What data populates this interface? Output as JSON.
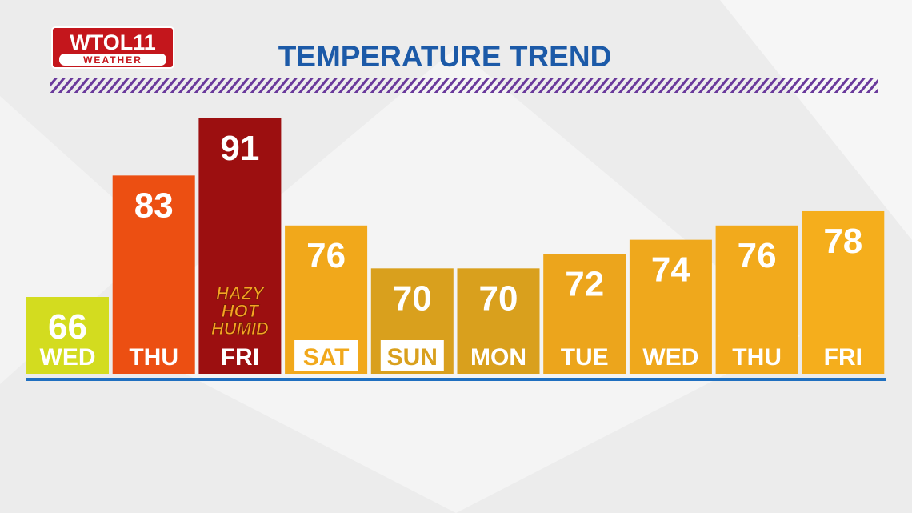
{
  "logo": {
    "name": "WTOL11",
    "sub": "WEATHER"
  },
  "chart_data": {
    "type": "bar",
    "title": "TEMPERATURE TREND",
    "categories": [
      "WED",
      "THU",
      "FRI",
      "SAT",
      "SUN",
      "MON",
      "TUE",
      "WED",
      "THU",
      "FRI"
    ],
    "values": [
      66,
      83,
      91,
      76,
      70,
      70,
      72,
      74,
      76,
      78
    ],
    "colors": [
      "#d3dc1f",
      "#ec4f12",
      "#9c0f10",
      "#f1a81b",
      "#d9a01d",
      "#d9a01d",
      "#eca51c",
      "#efa81c",
      "#f2aa1c",
      "#f5ae1c"
    ],
    "label_box": [
      false,
      false,
      false,
      true,
      true,
      false,
      false,
      false,
      false,
      false
    ],
    "annotations": [
      {
        "category": 2,
        "lines": [
          "HAZY",
          "HOT",
          "HUMID"
        ]
      }
    ]
  }
}
